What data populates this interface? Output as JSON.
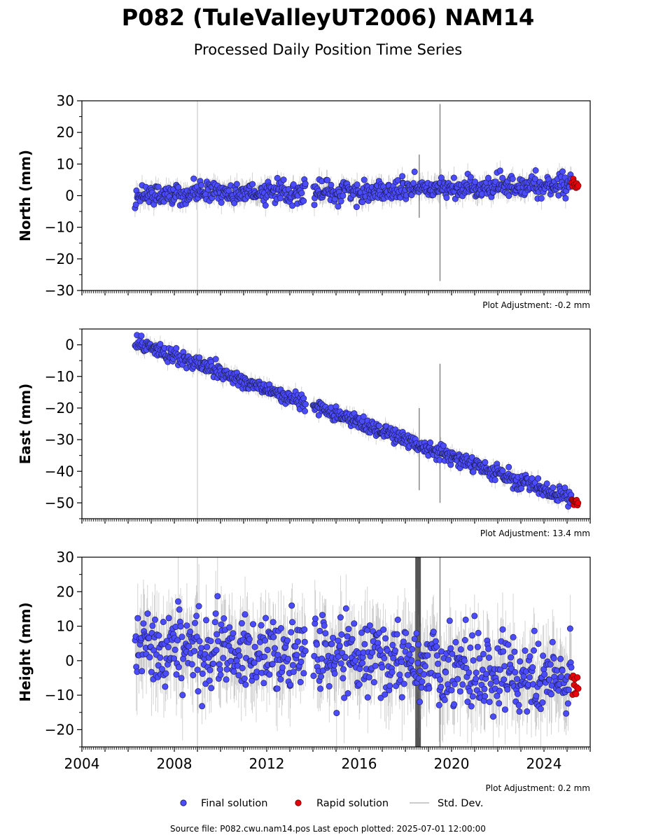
{
  "title": "P082 (TuleValleyUT2006) NAM14",
  "subtitle": "Processed Daily Position Time Series",
  "footer": "Source file: P082.cwu.nam14.pos  Last epoch plotted: 2025-07-01 12:00:00",
  "legend": {
    "final": "Final solution",
    "rapid": "Rapid solution",
    "std": "Std. Dev."
  },
  "colors": {
    "final_fill": "#4b4bff",
    "final_edge": "#1a1a4a",
    "rapid_fill": "#e8000b",
    "std_dev": "#888888",
    "axis": "#000000"
  },
  "chart_data": [
    {
      "type": "scatter",
      "ylabel": "North (mm)",
      "ylim": [
        -30,
        30
      ],
      "yticks": [
        30,
        20,
        10,
        0,
        -10,
        -20,
        -30
      ],
      "xlim": [
        2004,
        2026
      ],
      "xticks": [],
      "adjustment": "Plot Adjustment: -0.2 mm",
      "series": [
        {
          "name": "Final solution",
          "kind": "final",
          "x_range": [
            2006.3,
            2025.2
          ],
          "trend": [
            [
              2006.3,
              0.5
            ],
            [
              2013.7,
              1.2
            ],
            [
              2014.1,
              1.0
            ],
            [
              2025.2,
              3.5
            ]
          ],
          "scatter": 1.6,
          "gap": [
            2013.7,
            2014.0
          ]
        },
        {
          "name": "Rapid solution",
          "kind": "rapid",
          "x_range": [
            2025.2,
            2025.5
          ],
          "trend": [
            [
              2025.2,
              3.5
            ],
            [
              2025.5,
              3.3
            ]
          ],
          "scatter": 0.8
        }
      ],
      "spikes": [
        [
          2009.0,
          -30,
          30,
          "light"
        ],
        [
          2018.6,
          -7,
          13,
          "dark"
        ],
        [
          2019.5,
          -27,
          29,
          "dark"
        ]
      ]
    },
    {
      "type": "scatter",
      "ylabel": "East (mm)",
      "ylim": [
        -55,
        5
      ],
      "yticks": [
        0,
        -10,
        -20,
        -30,
        -40,
        -50
      ],
      "xlim": [
        2004,
        2026
      ],
      "xticks": [],
      "adjustment": "Plot Adjustment: 13.4 mm",
      "series": [
        {
          "name": "Final solution",
          "kind": "final",
          "x_range": [
            2006.3,
            2025.2
          ],
          "trend": [
            [
              2006.3,
              1.0
            ],
            [
              2025.2,
              -49.0
            ]
          ],
          "scatter": 1.2,
          "gap": [
            2013.7,
            2014.0
          ]
        },
        {
          "name": "Rapid solution",
          "kind": "rapid",
          "x_range": [
            2025.2,
            2025.5
          ],
          "trend": [
            [
              2025.2,
              -49.2
            ],
            [
              2025.5,
              -49.8
            ]
          ],
          "scatter": 0.6
        }
      ],
      "spikes": [
        [
          2009.0,
          -55,
          5,
          "light"
        ],
        [
          2018.6,
          -46,
          -20,
          "dark"
        ],
        [
          2019.5,
          -50,
          -6,
          "dark"
        ]
      ]
    },
    {
      "type": "scatter",
      "ylabel": "Height (mm)",
      "ylim": [
        -25,
        30
      ],
      "yticks": [
        30,
        20,
        10,
        0,
        -10,
        -20
      ],
      "xlim": [
        2004,
        2026
      ],
      "xticks": [
        "2004",
        "2008",
        "2012",
        "2016",
        "2020",
        "2024"
      ],
      "adjustment": "Plot Adjustment: 0.2 mm",
      "series": [
        {
          "name": "Final solution",
          "kind": "final",
          "x_range": [
            2006.3,
            2025.2
          ],
          "trend": [
            [
              2006.3,
              4.0
            ],
            [
              2016.0,
              1.0
            ],
            [
              2025.2,
              -6.0
            ]
          ],
          "scatter": 5.5,
          "gap": [
            2013.7,
            2014.0
          ]
        },
        {
          "name": "Rapid solution",
          "kind": "rapid",
          "x_range": [
            2025.2,
            2025.5
          ],
          "trend": [
            [
              2025.2,
              -6.0
            ],
            [
              2025.5,
              -7.0
            ]
          ],
          "scatter": 2.5
        }
      ],
      "spikes": [
        [
          2009.0,
          -25,
          30,
          "light"
        ],
        [
          2018.55,
          -25,
          30,
          "band"
        ],
        [
          2019.5,
          -25,
          30,
          "dark"
        ]
      ]
    }
  ]
}
